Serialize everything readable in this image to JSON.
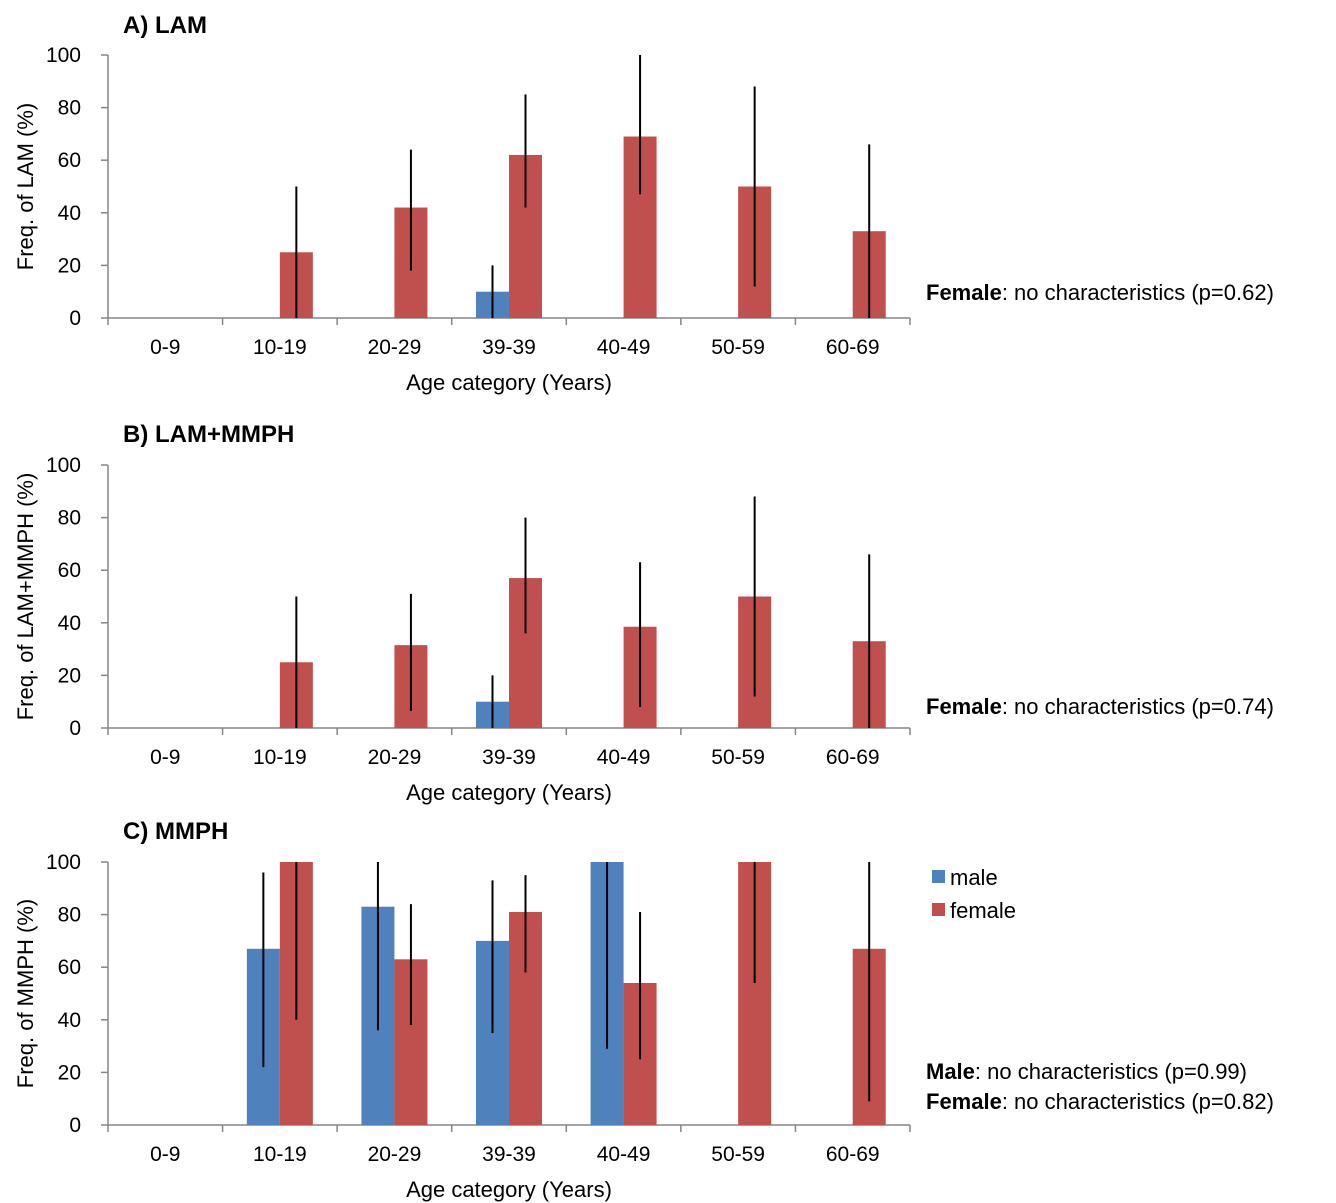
{
  "chart_data": [
    {
      "type": "bar",
      "title": "A) LAM",
      "xlabel": "Age category (Years)",
      "ylabel": "Freq. of LAM (%)",
      "ylim": [
        0,
        100
      ],
      "yticks": [
        0,
        20,
        40,
        60,
        80,
        100
      ],
      "categories": [
        "0-9",
        "10-19",
        "20-29",
        "39-39",
        "40-49",
        "50-59",
        "60-69"
      ],
      "grid": false,
      "series": [
        {
          "name": "male",
          "color": "#4F81BD",
          "values": [
            null,
            null,
            null,
            10,
            null,
            null,
            null
          ],
          "error_low": [
            null,
            null,
            null,
            0,
            null,
            null,
            null
          ],
          "error_high": [
            null,
            null,
            null,
            20,
            null,
            null,
            null
          ]
        },
        {
          "name": "female",
          "color": "#C0504D",
          "values": [
            null,
            25,
            42,
            62,
            69,
            50,
            33
          ],
          "error_low": [
            null,
            0,
            18,
            42,
            47,
            12,
            0
          ],
          "error_high": [
            null,
            50,
            64,
            85,
            100,
            88,
            66
          ]
        }
      ],
      "annotations": [
        [
          {
            "bold": "Female",
            "text": ": no  characteristics (p=0.62)"
          }
        ]
      ]
    },
    {
      "type": "bar",
      "title": "B) LAM+MMPH",
      "xlabel": "Age category (Years)",
      "ylabel": "Freq. of LAM+MMPH (%)",
      "ylim": [
        0,
        100
      ],
      "yticks": [
        0,
        20,
        40,
        60,
        80,
        100
      ],
      "categories": [
        "0-9",
        "10-19",
        "20-29",
        "39-39",
        "40-49",
        "50-59",
        "60-69"
      ],
      "grid": false,
      "series": [
        {
          "name": "male",
          "color": "#4F81BD",
          "values": [
            null,
            null,
            null,
            10,
            null,
            null,
            null
          ],
          "error_low": [
            null,
            null,
            null,
            0,
            null,
            null,
            null
          ],
          "error_high": [
            null,
            null,
            null,
            20,
            null,
            null,
            null
          ]
        },
        {
          "name": "female",
          "color": "#C0504D",
          "values": [
            null,
            25,
            31.5,
            57,
            38.5,
            50,
            33
          ],
          "error_low": [
            null,
            0,
            6.5,
            36,
            8,
            12,
            0
          ],
          "error_high": [
            null,
            50,
            51,
            80,
            63,
            88,
            66
          ]
        }
      ],
      "annotations": [
        [
          {
            "bold": "Female",
            "text": ": no  characteristics (p=0.74)"
          }
        ]
      ]
    },
    {
      "type": "bar",
      "title": "C) MMPH",
      "xlabel": "Age category (Years)",
      "ylabel": "Freq. of MMPH (%)",
      "ylim": [
        0,
        100
      ],
      "yticks": [
        0,
        20,
        40,
        60,
        80,
        100
      ],
      "categories": [
        "0-9",
        "10-19",
        "20-29",
        "39-39",
        "40-49",
        "50-59",
        "60-69"
      ],
      "grid": false,
      "legend": {
        "position": "right",
        "entries": [
          "male",
          "female"
        ]
      },
      "series": [
        {
          "name": "male",
          "color": "#4F81BD",
          "values": [
            null,
            67,
            83,
            70,
            100,
            null,
            null
          ],
          "error_low": [
            null,
            22,
            36,
            35,
            29,
            null,
            null
          ],
          "error_high": [
            null,
            96,
            100,
            93,
            100,
            null,
            null
          ]
        },
        {
          "name": "female",
          "color": "#C0504D",
          "values": [
            null,
            100,
            63,
            81,
            54,
            100,
            67
          ],
          "error_low": [
            null,
            40,
            38,
            58,
            25,
            54,
            9
          ],
          "error_high": [
            null,
            100,
            84,
            95,
            81,
            100,
            100
          ]
        }
      ],
      "annotations": [
        [
          {
            "bold": "Male",
            "text": ": no characteristics  (p=0.99)"
          }
        ],
        [
          {
            "bold": "Female",
            "text": ": no characteristics (p=0.82)"
          }
        ]
      ]
    }
  ]
}
